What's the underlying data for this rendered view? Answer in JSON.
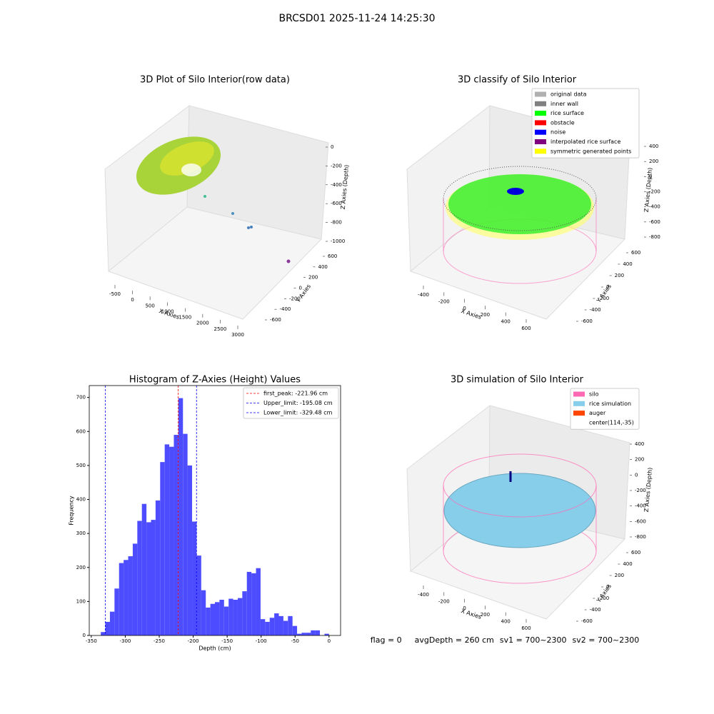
{
  "title": "BRCSD01 2025-11-24 14:25:30",
  "chart_data": [
    {
      "type": "scatter3d",
      "title": "3D Plot of Silo Interior(row data)",
      "xlabel": "X Axies",
      "ylabel": "Y Axies",
      "zlabel": "Z Axies (Depth)",
      "xticks": [
        -500,
        0,
        500,
        1000,
        1500,
        2000,
        2500,
        3000
      ],
      "yticks": [
        -600,
        -400,
        -200,
        0,
        200,
        400,
        600
      ],
      "zticks": [
        0,
        -200,
        -400,
        -600,
        -800,
        -1000
      ]
    },
    {
      "type": "scatter3d",
      "title": "3D classify of Silo Interior",
      "xlabel": "X Axies",
      "ylabel": "Y Axies",
      "zlabel": "Z Axies (Depth)",
      "xticks": [
        -400,
        -200,
        0,
        200,
        400,
        600
      ],
      "yticks": [
        -600,
        -400,
        -200,
        0,
        200,
        400,
        600
      ],
      "zticks": [
        400,
        200,
        0,
        -200,
        -400,
        -600,
        -800
      ],
      "legend": [
        {
          "name": "original data",
          "color": "#b0b0b0"
        },
        {
          "name": "inner wall",
          "color": "#808080"
        },
        {
          "name": "rice surface",
          "color": "#00ff00"
        },
        {
          "name": "obstacle",
          "color": "#ff0000"
        },
        {
          "name": "noise",
          "color": "#0000ff"
        },
        {
          "name": "interpolated rice surface",
          "color": "#800080"
        },
        {
          "name": "symmetric generated points",
          "color": "#ffff00"
        }
      ]
    },
    {
      "type": "histogram",
      "title": "Histogram of Z-Axies (Height) Values",
      "xlabel": "Depth (cm)",
      "ylabel": "Frequency",
      "color": "#4d4dff",
      "bins": [
        -336,
        -329.28,
        -322.56,
        -315.84,
        -309.12,
        -302.4,
        -295.68,
        -288.96,
        -282.24,
        -275.52,
        -268.8,
        -262.08,
        -255.36,
        -248.64,
        -241.92,
        -235.2,
        -228.48,
        -221.76,
        -215.04,
        -208.32,
        -201.6,
        -194.88,
        -188.16,
        -181.44,
        -174.72,
        -168,
        -161.28,
        -154.56,
        -147.84,
        -141.12,
        -134.4,
        -127.68,
        -120.96,
        -114.24,
        -107.52,
        -100.8,
        -94.08,
        -87.36,
        -80.64,
        -73.92,
        -67.2,
        -60.48,
        -53.76,
        -47.04,
        -40.32,
        -33.6,
        -26.88,
        -20.16,
        -13.44,
        -6.72,
        0
      ],
      "values": [
        10,
        40,
        70,
        138,
        213,
        222,
        233,
        270,
        337,
        387,
        333,
        340,
        397,
        510,
        562,
        555,
        590,
        698,
        593,
        500,
        335,
        235,
        133,
        82,
        93,
        98,
        105,
        85,
        108,
        105,
        110,
        130,
        187,
        183,
        198,
        48,
        40,
        52,
        65,
        57,
        43,
        57,
        28,
        5,
        8,
        8,
        15,
        15,
        0,
        5
      ],
      "xlim": [
        -353,
        17
      ],
      "ylim": [
        0,
        735
      ],
      "xticks": [
        -350,
        -300,
        -250,
        -200,
        -150,
        -100,
        -50,
        0
      ],
      "yticks": [
        0,
        100,
        200,
        300,
        400,
        500,
        600,
        700
      ],
      "lines": [
        {
          "name": "first_peak: -221.96 cm",
          "value": -221.96,
          "color": "#ff0000"
        },
        {
          "name": "Upper_limit: -195.08 cm",
          "value": -195.08,
          "color": "#0000ff"
        },
        {
          "name": "Lower_limit: -329.48 cm",
          "value": -329.48,
          "color": "#0000ff"
        }
      ]
    },
    {
      "type": "scatter3d",
      "title": "3D simulation of Silo Interior",
      "xlabel": "X Axies",
      "ylabel": "Y Axies",
      "zlabel": "Z Axies (Depth)",
      "xticks": [
        -400,
        -200,
        0,
        200,
        400,
        600
      ],
      "yticks": [
        -600,
        -400,
        -200,
        0,
        200,
        400,
        600
      ],
      "zticks": [
        400,
        200,
        0,
        -200,
        -400,
        -600,
        -800
      ],
      "legend": [
        {
          "name": "silo",
          "color": "#ff69b4"
        },
        {
          "name": "rice simulation",
          "color": "#87ceeb"
        },
        {
          "name": "auger",
          "color": "#ff4500"
        },
        {
          "name": "center(114,-35)"
        }
      ]
    }
  ],
  "status": [
    "flag = 0",
    "avgDepth = 260 cm",
    "sv1 = 700~2300",
    "sv2 = 700~2300"
  ]
}
